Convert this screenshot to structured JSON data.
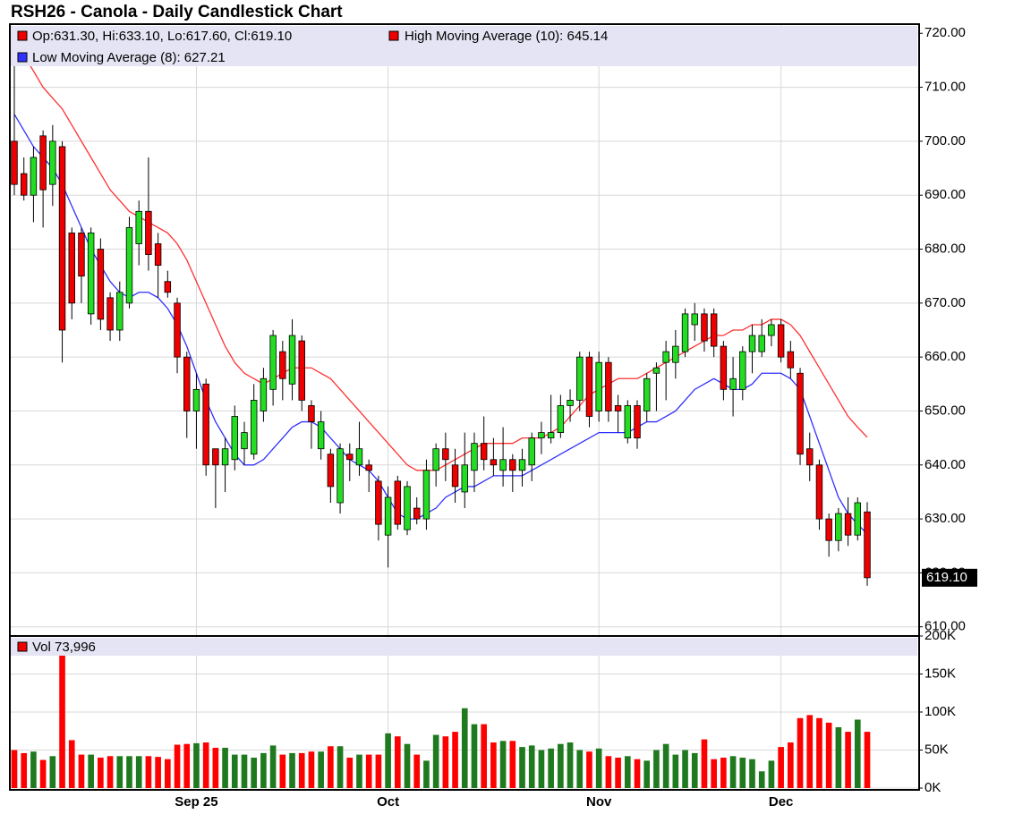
{
  "chart_data": {
    "type": "candlestick",
    "title": "RSH26 - Canola - Daily Candlestick Chart",
    "legend": {
      "ohlc": "Op:631.30, Hi:633.10, Lo:617.60, Cl:619.10",
      "high_ma": "High Moving Average (10): 645.14",
      "low_ma": "Low Moving Average (8): 627.21",
      "volume": "Vol 73,996"
    },
    "last_price_label": "619.10",
    "categories": [
      null,
      null,
      null,
      null,
      null,
      null,
      null,
      null,
      null,
      null,
      null,
      null,
      null,
      null,
      null,
      null,
      null,
      null,
      null,
      "Sep 25",
      null,
      null,
      null,
      null,
      null,
      null,
      null,
      null,
      null,
      null,
      null,
      null,
      null,
      null,
      null,
      null,
      null,
      null,
      null,
      "Oct",
      null,
      null,
      null,
      null,
      null,
      null,
      null,
      null,
      null,
      null,
      null,
      null,
      null,
      null,
      null,
      null,
      null,
      null,
      null,
      null,
      null,
      "Nov",
      null,
      null,
      null,
      null,
      null,
      null,
      null,
      null,
      null,
      null,
      null,
      null,
      null,
      null,
      null,
      null,
      null,
      null,
      "Dec",
      null,
      null,
      null,
      null,
      null,
      null,
      null,
      null,
      null
    ],
    "open": [
      700,
      694,
      690,
      701,
      692,
      699,
      683,
      683,
      668,
      680,
      671,
      665,
      670,
      681,
      687,
      681,
      674,
      670,
      660,
      650,
      655,
      643,
      640,
      641,
      643,
      642,
      650,
      654,
      661,
      655,
      663,
      651,
      643,
      642,
      633,
      642,
      640,
      640,
      637,
      627,
      637,
      628,
      632,
      630,
      639,
      643,
      640,
      635,
      639,
      644,
      641,
      639,
      641,
      639,
      640,
      645,
      645,
      646,
      651,
      652,
      660,
      650,
      659,
      651,
      645,
      651,
      650,
      657,
      659,
      659,
      661,
      666,
      668,
      668,
      662,
      654,
      654,
      661,
      661,
      664,
      666,
      661,
      657,
      643,
      640,
      630,
      626,
      631,
      627,
      631.3
    ],
    "high": [
      718,
      697,
      699,
      702,
      703,
      700,
      684,
      684,
      684,
      682,
      672,
      674,
      686,
      689,
      697,
      683,
      676,
      671,
      661,
      657,
      656,
      643,
      645,
      651,
      648,
      655,
      658,
      665,
      663,
      667,
      664,
      652,
      650,
      643,
      644,
      644,
      648,
      641,
      638,
      636,
      638,
      637,
      634,
      641,
      644,
      646,
      643,
      646,
      646,
      649,
      645,
      647,
      642,
      643,
      646,
      648,
      653,
      653,
      654,
      661,
      661,
      661,
      660,
      653,
      652,
      652,
      657,
      659,
      663,
      665,
      669,
      670,
      669,
      669,
      663,
      660,
      662,
      666,
      667,
      667,
      667,
      663,
      658,
      646,
      641,
      631,
      632,
      634,
      634,
      633.1
    ],
    "low": [
      690,
      689,
      685,
      684,
      688,
      659,
      667,
      670,
      666,
      665,
      663,
      663,
      669,
      677,
      676,
      671,
      671,
      657,
      645,
      643,
      638,
      632,
      635,
      639,
      640,
      641,
      648,
      651,
      652,
      652,
      650,
      643,
      641,
      633,
      631,
      637,
      638,
      635,
      626,
      621,
      628,
      627,
      629,
      628,
      636,
      637,
      633,
      632,
      635,
      639,
      638,
      636,
      635,
      636,
      637,
      642,
      644,
      645,
      648,
      650,
      647,
      648,
      648,
      646,
      644,
      643,
      648,
      650,
      652,
      656,
      660,
      663,
      661,
      660,
      652,
      649,
      652,
      657,
      660,
      662,
      659,
      656,
      640,
      637,
      628,
      623,
      624,
      625,
      626,
      617.6
    ],
    "close": [
      692,
      690,
      697,
      691,
      700,
      665,
      670,
      675,
      683,
      667,
      665,
      672,
      684,
      687,
      679,
      677,
      672,
      660,
      650,
      654,
      640,
      640,
      643,
      649,
      646,
      652,
      656,
      664,
      656,
      664,
      652,
      648,
      648,
      636,
      643,
      641,
      643,
      639,
      629,
      634,
      629,
      636,
      630,
      639,
      643,
      641,
      636,
      640,
      644,
      641,
      640,
      641,
      639,
      641,
      645,
      646,
      646,
      651,
      652,
      660,
      649,
      659,
      650,
      650,
      651,
      645,
      656,
      658,
      661,
      662,
      668,
      668,
      663,
      662,
      654,
      656,
      661,
      664,
      664,
      666,
      660,
      658,
      642,
      640,
      630,
      626,
      631,
      627,
      633,
      619.1
    ],
    "up_color": "#22dd22",
    "down_color": "#ee0000",
    "lines": [
      {
        "name": "High Moving Average (10)",
        "color": "#ff3030",
        "values": [
          718,
          716,
          713,
          710,
          708,
          706,
          703,
          700,
          697,
          694,
          691,
          689,
          687,
          686,
          685,
          684,
          683,
          681,
          678,
          674,
          670,
          666,
          662,
          659,
          657,
          656,
          655,
          656,
          657,
          658,
          658,
          658,
          657,
          656,
          654,
          652,
          650,
          648,
          646,
          644,
          642,
          640,
          639,
          639,
          639,
          640,
          641,
          642,
          643,
          644,
          644,
          644,
          644,
          645,
          645,
          645,
          646,
          647,
          649,
          651,
          653,
          654,
          655,
          656,
          656,
          656,
          657,
          658,
          659,
          660,
          661,
          662,
          663,
          664,
          664,
          665,
          665,
          666,
          666,
          667,
          667,
          666,
          664,
          661,
          658,
          655,
          652,
          649,
          647,
          645.14
        ]
      },
      {
        "name": "Low Moving Average (8)",
        "color": "#3030ff",
        "values": [
          705,
          702,
          699,
          697,
          695,
          692,
          688,
          684,
          680,
          677,
          674,
          672,
          671,
          672,
          672,
          671,
          669,
          666,
          662,
          657,
          652,
          648,
          645,
          642,
          640,
          640,
          641,
          643,
          645,
          647,
          648,
          648,
          647,
          645,
          643,
          641,
          640,
          639,
          637,
          634,
          631,
          630,
          630,
          631,
          632,
          634,
          635,
          636,
          636,
          637,
          638,
          638,
          638,
          638,
          639,
          640,
          641,
          642,
          643,
          644,
          645,
          646,
          646,
          646,
          646,
          647,
          648,
          648,
          649,
          650,
          652,
          654,
          655,
          656,
          655,
          654,
          654,
          655,
          657,
          657,
          657,
          656,
          654,
          649,
          644,
          639,
          634,
          631,
          629,
          627.21
        ]
      }
    ],
    "ylim": [
      608.3,
      721.7
    ],
    "yticks": [
      {
        "value": 610,
        "label": "610.00"
      },
      {
        "value": 620,
        "label": "620.00"
      },
      {
        "value": 630,
        "label": "630.00"
      },
      {
        "value": 640,
        "label": "640.00"
      },
      {
        "value": 650,
        "label": "650.00"
      },
      {
        "value": 660,
        "label": "660.00"
      },
      {
        "value": 670,
        "label": "670.00"
      },
      {
        "value": 680,
        "label": "680.00"
      },
      {
        "value": 690,
        "label": "690.00"
      },
      {
        "value": 700,
        "label": "700.00"
      },
      {
        "value": 710,
        "label": "710.00"
      },
      {
        "value": 720,
        "label": "720.00"
      }
    ],
    "volume": [
      50,
      46,
      48,
      37,
      42,
      180,
      63,
      44,
      44,
      40,
      42,
      42,
      42,
      42,
      42,
      41,
      38,
      57,
      58,
      59,
      60,
      53,
      53,
      44,
      44,
      40,
      46,
      56,
      44,
      46,
      46,
      48,
      48,
      55,
      55,
      40,
      44,
      44,
      44,
      72,
      68,
      58,
      44,
      36,
      70,
      68,
      74,
      105,
      84,
      84,
      60,
      62,
      62,
      54,
      56,
      50,
      52,
      58,
      60,
      50,
      48,
      52,
      42,
      40,
      42,
      38,
      36,
      50,
      58,
      44,
      50,
      46,
      64,
      38,
      40,
      42,
      40,
      38,
      22,
      36,
      54,
      60,
      92,
      96,
      92,
      86,
      80,
      74,
      90,
      73.996
    ],
    "volume_up_color": "#1f7a1f",
    "volume_down_color": "#ff0000",
    "vlim": [
      0,
      200
    ],
    "vticks": [
      {
        "value": 0,
        "label": "0K"
      },
      {
        "value": 50,
        "label": "50K"
      },
      {
        "value": 100,
        "label": "100K"
      },
      {
        "value": 150,
        "label": "150K"
      },
      {
        "value": 200,
        "label": "200K"
      }
    ],
    "grid": true
  }
}
